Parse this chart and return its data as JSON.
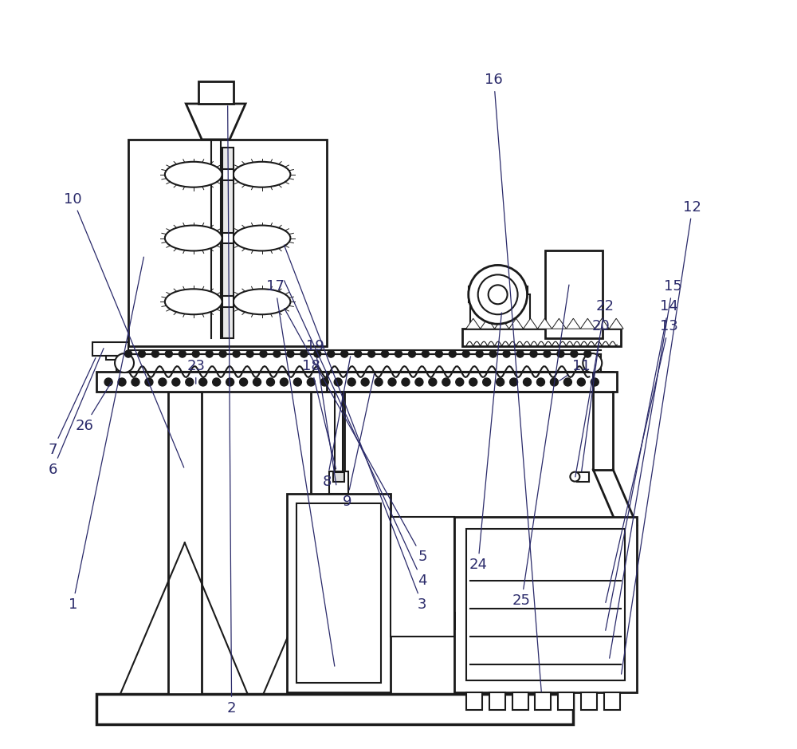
{
  "bg_color": "#ffffff",
  "line_color": "#1a1a1a",
  "label_color": "#2a2a6a",
  "label_fontsize": 13,
  "lw": 1.5,
  "lw2": 2.0
}
